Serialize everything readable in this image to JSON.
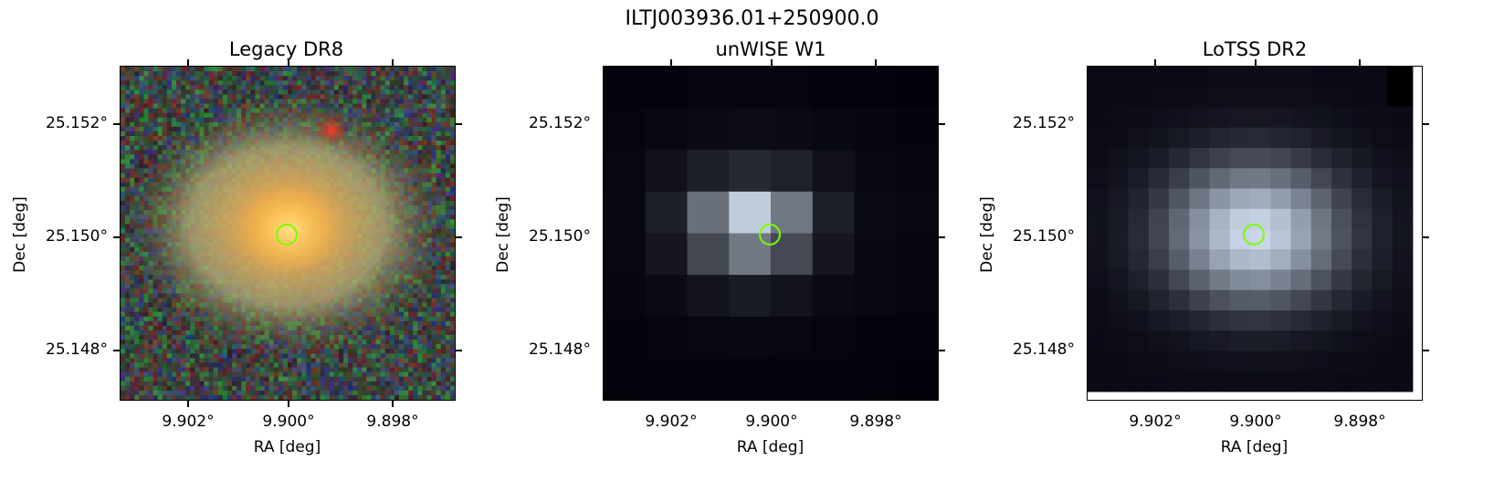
{
  "figure": {
    "title": "ILTJ003936.01+250900.0"
  },
  "panels": [
    {
      "title": "Legacy DR8",
      "ylabel": "Dec [deg]",
      "xlabel": "RA [deg]",
      "yticks": [
        "25.152°",
        "25.150°",
        "25.148°"
      ],
      "xticks": [
        "9.902°",
        "9.900°",
        "9.898°"
      ]
    },
    {
      "title": "unWISE W1",
      "ylabel": "Dec [deg]",
      "xlabel": "RA [deg]",
      "yticks": [
        "25.152°",
        "25.150°",
        "25.148°"
      ],
      "xticks": [
        "9.902°",
        "9.900°",
        "9.898°"
      ]
    },
    {
      "title": "LoTSS DR2",
      "ylabel": "Dec [deg]",
      "xlabel": "RA [deg]",
      "yticks": [
        "25.152°",
        "25.150°",
        "25.148°"
      ],
      "xticks": [
        "9.902°",
        "9.900°",
        "9.898°"
      ]
    }
  ],
  "colors": {
    "marker": "#7cfc00",
    "background": "#ffffff"
  }
}
